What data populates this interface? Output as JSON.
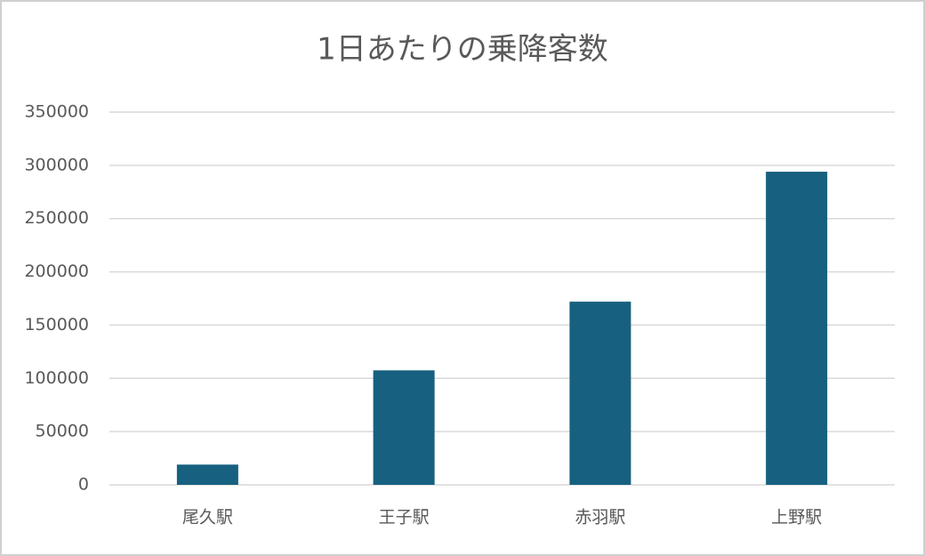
{
  "chart_data": {
    "type": "bar",
    "title": "1日あたりの乗降客数",
    "categories": [
      "尾久駅",
      "王子駅",
      "赤羽駅",
      "上野駅"
    ],
    "values": [
      19000,
      107500,
      172000,
      294000
    ],
    "color": "#17607f",
    "ylim": [
      0,
      350000
    ],
    "yticks": [
      0,
      50000,
      100000,
      150000,
      200000,
      250000,
      300000,
      350000
    ],
    "grid": true
  }
}
